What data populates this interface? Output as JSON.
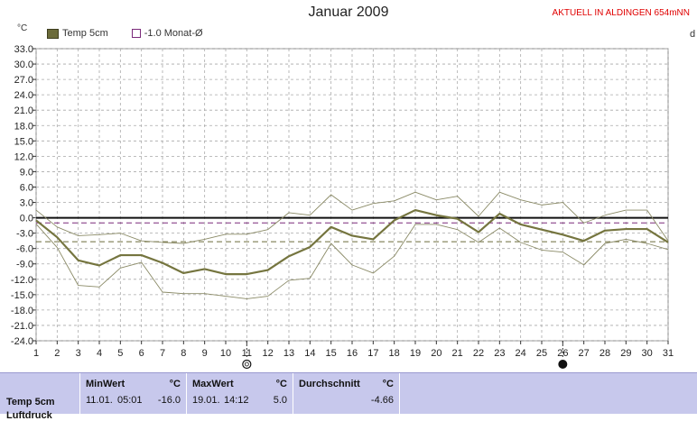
{
  "header": {
    "title": "Januar 2009",
    "station": "AKTUELL IN ALDINGEN 654mNN",
    "unit": "°C",
    "edge_label": "d"
  },
  "legend": [
    {
      "label": "Temp 5cm",
      "style": "filled",
      "color": "#6b6b3a"
    },
    {
      "label": "-1.0 Monat-Ø",
      "style": "outline",
      "color": "#7a2a7a"
    }
  ],
  "chart_data": {
    "type": "line",
    "title": "Januar 2009",
    "xlabel": "",
    "ylabel": "°C",
    "x": [
      1,
      2,
      3,
      4,
      5,
      6,
      7,
      8,
      9,
      10,
      11,
      12,
      13,
      14,
      15,
      16,
      17,
      18,
      19,
      20,
      21,
      22,
      23,
      24,
      25,
      26,
      27,
      28,
      29,
      30,
      31
    ],
    "xlim": [
      1,
      31
    ],
    "ylim": [
      -24,
      33
    ],
    "y_ticks": [
      33,
      30,
      27,
      24,
      21,
      18,
      15,
      12,
      9,
      6,
      3,
      0,
      -3,
      -6,
      -9,
      -12,
      -15,
      -18,
      -21,
      -24
    ],
    "y_tick_labels": [
      "33.0",
      "30.0",
      "27.0",
      "24.0",
      "21.0",
      "18.0",
      "15.0",
      "12.0",
      "9.0",
      "6.0",
      "3.0",
      "0.0",
      "-3.0",
      "-6.0",
      "-9.0",
      "-12.0",
      "-15.0",
      "-18.0",
      "-21.0",
      "-24.0"
    ],
    "grid": true,
    "series": [
      {
        "name": "Temp 5cm",
        "color": "#75753f",
        "width": 2.2,
        "values": [
          -0.5,
          -3.8,
          -8.3,
          -9.3,
          -7.3,
          -7.3,
          -8.8,
          -10.8,
          -10.0,
          -11.0,
          -11.0,
          -10.2,
          -7.5,
          -5.7,
          -1.8,
          -3.5,
          -4.2,
          -0.5,
          1.5,
          0.5,
          -0.2,
          -2.8,
          0.8,
          -1.3,
          -2.3,
          -3.3,
          -4.5,
          -2.5,
          -2.2,
          -2.2,
          -4.8
        ]
      },
      {
        "color": "#8a8a66",
        "width": 0.9,
        "values": [
          1.5,
          -1.8,
          -3.5,
          -3.3,
          -3.0,
          -4.5,
          -4.8,
          -5.0,
          -4.2,
          -3.2,
          -3.2,
          -2.3,
          1.0,
          0.5,
          4.5,
          1.5,
          2.8,
          3.3,
          5.0,
          3.5,
          4.2,
          0.3,
          5.0,
          3.5,
          2.5,
          3.0,
          -1.0,
          0.5,
          1.5,
          1.5,
          -4.5
        ]
      },
      {
        "color": "#8a8a66",
        "width": 0.9,
        "values": [
          -1.2,
          -5.8,
          -13.2,
          -13.5,
          -9.8,
          -8.7,
          -14.5,
          -14.8,
          -14.8,
          -15.3,
          -15.8,
          -15.3,
          -12.2,
          -11.8,
          -5.0,
          -9.2,
          -10.8,
          -7.5,
          -1.3,
          -1.3,
          -2.3,
          -4.8,
          -2.0,
          -4.8,
          -6.3,
          -6.7,
          -9.2,
          -5.0,
          -4.2,
          -5.0,
          -6.2
        ]
      }
    ],
    "reference_lines": [
      {
        "name": "0 °C",
        "value": 0,
        "color": "#111111",
        "style": "solid"
      },
      {
        "name": "-1.0 Monat-Ø",
        "value": -1.0,
        "color": "#7a2a7a",
        "style": "dashed"
      },
      {
        "name": "monthly mean 5cm",
        "value": -4.66,
        "color": "#6b6b3a",
        "style": "dashed"
      }
    ],
    "markers": [
      {
        "day": 11,
        "symbol": "full-moon"
      },
      {
        "day": 26,
        "symbol": "new-moon"
      }
    ]
  },
  "stats": {
    "row_label": "Temp 5cm",
    "row_label_2": "Luftdruck",
    "min": {
      "header": "MinWert",
      "unit": "°C",
      "date": "11.01.",
      "time": "05:01",
      "value": "-16.0"
    },
    "max": {
      "header": "MaxWert",
      "unit": "°C",
      "date": "19.01.",
      "time": "14:12",
      "value": "5.0"
    },
    "avg": {
      "header": "Durchschnitt",
      "unit": "°C",
      "value": "-4.66"
    }
  }
}
